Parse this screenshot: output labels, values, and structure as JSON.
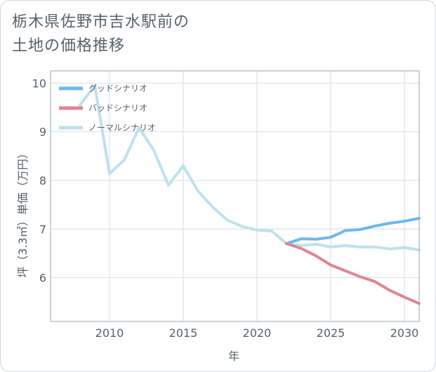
{
  "title_lines": [
    "栃木県佐野市吉水駅前の",
    "土地の価格推移"
  ],
  "chart_data": {
    "type": "line",
    "xlabel": "年",
    "ylabel": "坪（3.3㎡）単価（万円）",
    "xlim": [
      2006,
      2031
    ],
    "ylim": [
      5.1,
      10.25
    ],
    "x_ticks": [
      2010,
      2015,
      2020,
      2025,
      2030
    ],
    "y_ticks": [
      6,
      7,
      8,
      9,
      10
    ],
    "grid": true,
    "legend_position": "top-left",
    "series": [
      {
        "name": "グッドシナリオ",
        "color": "#6cb8f0",
        "x": [
          2022,
          2023,
          2024,
          2025,
          2026,
          2027,
          2028,
          2029,
          2030,
          2031
        ],
        "y": [
          6.7,
          6.8,
          6.79,
          6.83,
          6.97,
          6.99,
          7.06,
          7.12,
          7.16,
          7.22
        ]
      },
      {
        "name": "バッドシナリオ",
        "color": "#e0858f",
        "x": [
          2022,
          2023,
          2024,
          2025,
          2026,
          2027,
          2028,
          2029,
          2030,
          2031
        ],
        "y": [
          6.7,
          6.6,
          6.45,
          6.26,
          6.14,
          6.02,
          5.92,
          5.74,
          5.6,
          5.47
        ]
      },
      {
        "name": "ノーマルシナリオ",
        "color": "#bfe0ee",
        "x": [
          2008,
          2009,
          2010,
          2011,
          2012,
          2013,
          2014,
          2015,
          2016,
          2017,
          2018,
          2019,
          2020,
          2021,
          2022,
          2023,
          2024,
          2025,
          2026,
          2027,
          2028,
          2029,
          2030,
          2031
        ],
        "y": [
          9.55,
          9.95,
          8.14,
          8.42,
          9.08,
          8.62,
          7.9,
          8.3,
          7.78,
          7.45,
          7.18,
          7.05,
          6.98,
          6.96,
          6.7,
          6.66,
          6.69,
          6.63,
          6.66,
          6.63,
          6.63,
          6.59,
          6.62,
          6.57
        ]
      }
    ]
  }
}
